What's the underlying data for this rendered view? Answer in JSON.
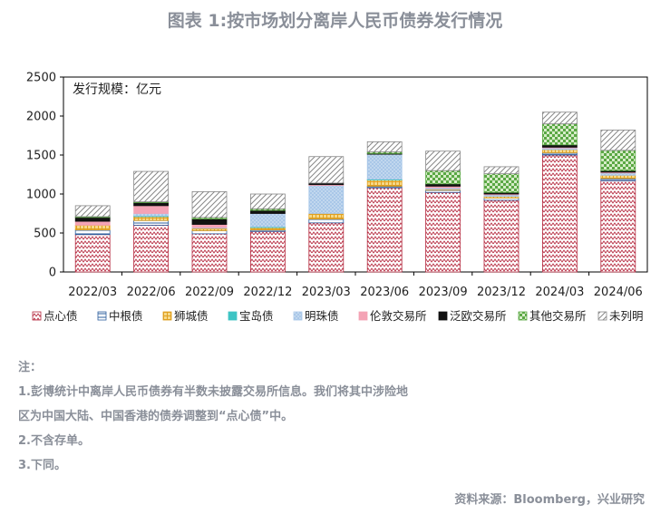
{
  "title": "图表 1:按市场划分离岸人民币债券发行情况",
  "chart_data": {
    "type": "bar",
    "stacked": true,
    "unit_label": "发行规模：亿元",
    "ylim": [
      0,
      2500
    ],
    "yticks": [
      0,
      500,
      1000,
      1500,
      2000,
      2500
    ],
    "categories": [
      "2022/03",
      "2022/06",
      "2022/09",
      "2022/12",
      "2023/03",
      "2023/06",
      "2023/09",
      "2023/12",
      "2024/03",
      "2024/06"
    ],
    "series": [
      {
        "name": "点心债",
        "color": "#b5283e",
        "pattern": "zigzag",
        "values": [
          480,
          600,
          490,
          520,
          630,
          1080,
          1020,
          920,
          1500,
          1170
        ]
      },
      {
        "name": "中根债",
        "color": "#2e5f9e",
        "pattern": "hline",
        "values": [
          60,
          60,
          40,
          20,
          50,
          20,
          30,
          30,
          30,
          30
        ]
      },
      {
        "name": "狮城债",
        "color": "#e0a020",
        "pattern": "grid",
        "values": [
          60,
          50,
          30,
          30,
          70,
          80,
          10,
          20,
          40,
          40
        ]
      },
      {
        "name": "宝岛债",
        "color": "#3ec4c4",
        "pattern": "solid",
        "values": [
          0,
          10,
          0,
          10,
          0,
          10,
          0,
          0,
          0,
          0
        ]
      },
      {
        "name": "明珠债",
        "color": "#a9c7e8",
        "pattern": "dots",
        "values": [
          0,
          30,
          10,
          170,
          360,
          320,
          20,
          20,
          20,
          30
        ]
      },
      {
        "name": "伦敦交易所",
        "color": "#f4a3b5",
        "pattern": "solid",
        "values": [
          50,
          100,
          40,
          0,
          10,
          0,
          20,
          10,
          10,
          10
        ]
      },
      {
        "name": "泛欧交易所",
        "color": "#111111",
        "pattern": "solid",
        "values": [
          50,
          40,
          70,
          40,
          20,
          10,
          30,
          20,
          30,
          20
        ]
      },
      {
        "name": "其他交易所",
        "color": "#5aa844",
        "pattern": "checker",
        "values": [
          10,
          10,
          20,
          20,
          0,
          20,
          170,
          240,
          270,
          260
        ]
      },
      {
        "name": "未列明",
        "color": "#888888",
        "pattern": "diag",
        "values": [
          140,
          390,
          330,
          190,
          340,
          130,
          250,
          90,
          150,
          260
        ]
      }
    ]
  },
  "notes": [
    "注：",
    "1.彭博统计中离岸人民币债券有半数未披露交易所信息。我们将其中涉险地",
    "区为中国大陆、中国香港的债券调整到“点心债”中。",
    "2.不含存单。",
    "3.下同。"
  ],
  "source": "资料来源：Bloomberg，兴业研究"
}
